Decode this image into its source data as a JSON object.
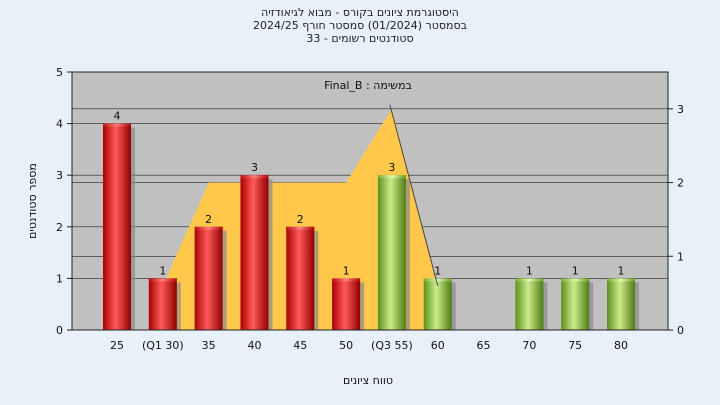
{
  "title": {
    "line1": "היסטוגרמת ציונים בקורס - מבוא לגיאודזיה",
    "line2": "בסמסטר  (01/2024)  סמסטר חורף 2024/25",
    "line3": "סטודנטים רשומים - 33"
  },
  "colors": {
    "background": "#e8f0fa",
    "plot_area": "#c0c0c0",
    "red_bar": "#e02020",
    "green_bar": "#8cc83c",
    "overlay_fill": "#ffc84a"
  },
  "chart_data": {
    "type": "bar",
    "annotation": "Final_B : במשימה",
    "xlabel": "טווח ציונים",
    "ylabel": "מספר סטודנטים",
    "ylim": [
      0,
      5
    ],
    "y_ticks": [
      "0",
      "1",
      "2",
      "3",
      "4",
      "5"
    ],
    "y2lim": [
      0,
      3.5
    ],
    "y2_ticks": [
      "0",
      "1",
      "2",
      "3"
    ],
    "categories": [
      "25",
      "(Q1 30)",
      "35",
      "40",
      "45",
      "50",
      "(Q3 55)",
      "60",
      "65",
      "70",
      "75",
      "80"
    ],
    "values": [
      4,
      1,
      2,
      3,
      2,
      1,
      3,
      1,
      0,
      1,
      1,
      1
    ],
    "bar_colors": [
      "red",
      "red",
      "red",
      "red",
      "red",
      "red",
      "green",
      "green",
      "green",
      "green",
      "green",
      "green"
    ],
    "overlay": {
      "type": "area",
      "x_index": [
        1,
        2,
        3,
        4,
        5,
        6,
        7
      ],
      "values": [
        0.6,
        2,
        2,
        2,
        2,
        3,
        0.6
      ]
    },
    "grid": true
  }
}
